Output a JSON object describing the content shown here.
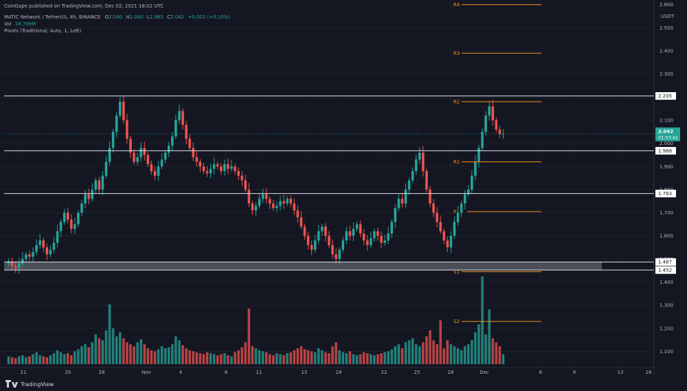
{
  "header": {
    "publisher": "CoinGape published on TradingView.com, Dec 02, 2021 18:02 UTC",
    "symbol": "MATIC Network / TetherUS, 4h, BINANCE",
    "ohlc": [
      {
        "k": "O",
        "v": "2.040"
      },
      {
        "k": "H",
        "v": "2.080"
      },
      {
        "k": "L",
        "v": "1.983"
      },
      {
        "k": "C",
        "v": "2.042"
      }
    ],
    "change": "+0.002 (+0.10%)",
    "vol_label": "Vol",
    "vol_value": "18.799M",
    "pivots_label": "Pivots (Traditional, Auto, 1, Left)"
  },
  "footer": {
    "brand": "TradingView"
  },
  "colors": {
    "background": "#141722",
    "up": "#26a69a",
    "down": "#ef5350",
    "pivot": "#f7931a",
    "text": "#b2b5be",
    "level_line": "#e0e3eb",
    "zone": "#787b86"
  },
  "chart_data": {
    "type": "candlestick",
    "currency": "USDT",
    "ylim": [
      1.03,
      2.62
    ],
    "y_ticks": [
      "2.600",
      "2.500",
      "2.400",
      "2.300",
      "2.200",
      "2.100",
      "2.000",
      "1.900",
      "1.800",
      "1.700",
      "1.600",
      "1.500",
      "1.400",
      "1.300",
      "1.200",
      "1.100"
    ],
    "x_ticks": [
      "21",
      "25",
      "28",
      "Nov",
      "4",
      "8",
      "11",
      "15",
      "18",
      "22",
      "25",
      "28",
      "Dec",
      "6",
      "9",
      "13",
      "16"
    ],
    "pivots": [
      {
        "label": "R4",
        "value": 2.6
      },
      {
        "label": "R3",
        "value": 2.39
      },
      {
        "label": "R2",
        "value": 2.18
      },
      {
        "label": "R1",
        "value": 1.92
      },
      {
        "label": "P",
        "value": 1.705
      },
      {
        "label": "S1",
        "value": 1.445
      },
      {
        "label": "S2",
        "value": 1.23
      }
    ],
    "levels": [
      {
        "label": "2.205",
        "value": 2.205
      },
      {
        "label": "1.968",
        "value": 1.968
      },
      {
        "label": "1.783",
        "value": 1.783
      },
      {
        "label": "1.487",
        "value": 1.487
      },
      {
        "label": "1.452",
        "value": 1.452
      }
    ],
    "support_zone": [
      1.452,
      1.487
    ],
    "last_price": {
      "value": "2.042",
      "countdown": "01:53:41"
    },
    "price_path": [
      1.49,
      1.47,
      1.46,
      1.48,
      1.5,
      1.52,
      1.51,
      1.53,
      1.56,
      1.58,
      1.55,
      1.52,
      1.54,
      1.57,
      1.62,
      1.66,
      1.7,
      1.67,
      1.63,
      1.65,
      1.7,
      1.74,
      1.78,
      1.76,
      1.8,
      1.84,
      1.8,
      1.86,
      1.92,
      1.98,
      2.05,
      2.12,
      2.18,
      2.1,
      2.02,
      1.96,
      1.92,
      1.94,
      1.98,
      1.95,
      1.91,
      1.88,
      1.86,
      1.9,
      1.93,
      1.96,
      1.99,
      2.03,
      2.1,
      2.14,
      2.08,
      2.02,
      1.98,
      1.94,
      1.92,
      1.9,
      1.88,
      1.87,
      1.89,
      1.91,
      1.9,
      1.88,
      1.91,
      1.89,
      1.9,
      1.88,
      1.86,
      1.84,
      1.8,
      1.74,
      1.71,
      1.73,
      1.76,
      1.78,
      1.76,
      1.74,
      1.72,
      1.73,
      1.75,
      1.74,
      1.76,
      1.74,
      1.71,
      1.68,
      1.64,
      1.6,
      1.56,
      1.54,
      1.58,
      1.62,
      1.64,
      1.6,
      1.56,
      1.52,
      1.5,
      1.54,
      1.58,
      1.62,
      1.6,
      1.63,
      1.65,
      1.61,
      1.58,
      1.56,
      1.59,
      1.62,
      1.6,
      1.57,
      1.58,
      1.61,
      1.66,
      1.72,
      1.76,
      1.74,
      1.8,
      1.84,
      1.88,
      1.93,
      1.96,
      1.88,
      1.8,
      1.74,
      1.7,
      1.66,
      1.62,
      1.58,
      1.55,
      1.6,
      1.66,
      1.7,
      1.74,
      1.78,
      1.8,
      1.86,
      1.92,
      1.98,
      2.05,
      2.12,
      2.16,
      2.1,
      2.06,
      2.04,
      2.042
    ],
    "volume": [
      8,
      7,
      6,
      8,
      9,
      7,
      8,
      10,
      12,
      9,
      8,
      7,
      9,
      11,
      14,
      12,
      10,
      11,
      9,
      13,
      15,
      18,
      20,
      17,
      22,
      30,
      26,
      24,
      34,
      42,
      36,
      28,
      32,
      26,
      22,
      20,
      18,
      22,
      25,
      20,
      16,
      14,
      13,
      15,
      18,
      16,
      17,
      20,
      28,
      24,
      19,
      16,
      14,
      13,
      12,
      11,
      10,
      12,
      11,
      10,
      9,
      10,
      11,
      9,
      8,
      12,
      14,
      17,
      22,
      30,
      18,
      16,
      14,
      13,
      12,
      10,
      9,
      11,
      10,
      9,
      11,
      12,
      14,
      16,
      18,
      15,
      14,
      13,
      12,
      16,
      14,
      12,
      11,
      18,
      22,
      14,
      12,
      11,
      13,
      10,
      9,
      10,
      12,
      11,
      10,
      9,
      10,
      11,
      12,
      13,
      15,
      18,
      20,
      16,
      22,
      24,
      26,
      20,
      18,
      22,
      28,
      34,
      24,
      20,
      18,
      16,
      24,
      20,
      18,
      16,
      14,
      18,
      20,
      24,
      32,
      40,
      36,
      30,
      28,
      26,
      22,
      18,
      10
    ],
    "volume_spikes": [
      {
        "index": 29,
        "value": 60
      },
      {
        "index": 69,
        "value": 56
      },
      {
        "index": 124,
        "value": 44
      },
      {
        "index": 136,
        "value": 88
      },
      {
        "index": 138,
        "value": 55
      }
    ]
  }
}
